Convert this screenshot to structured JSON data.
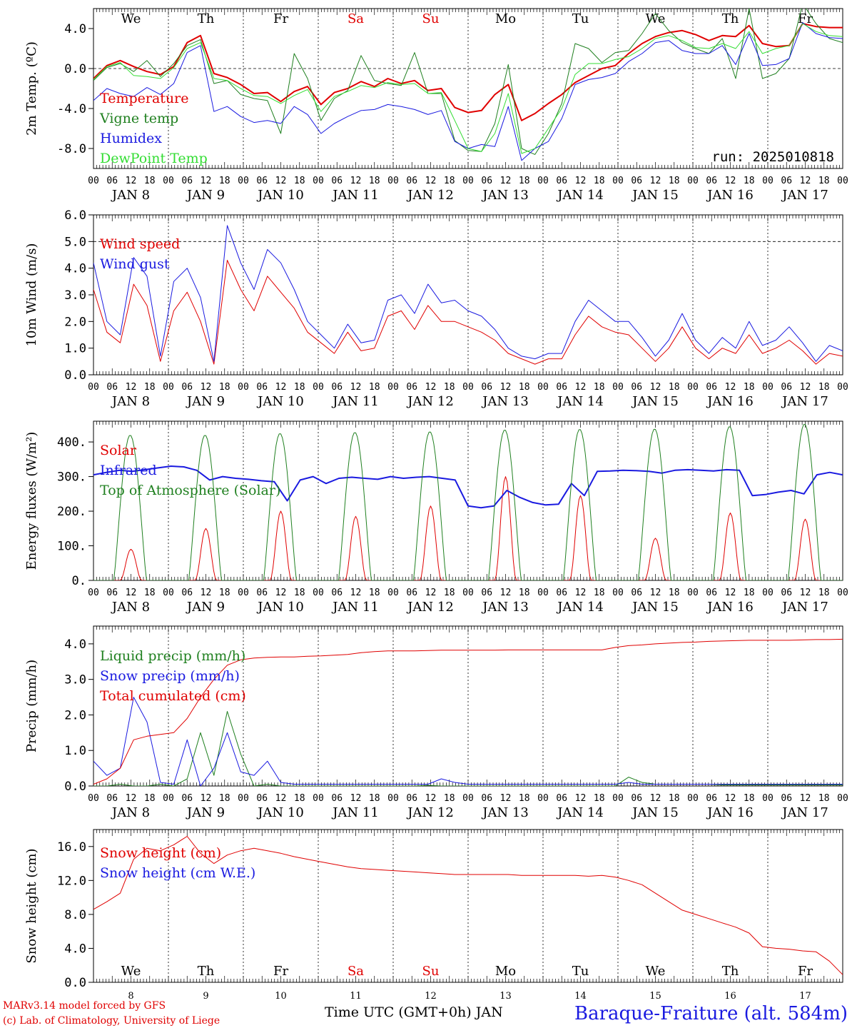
{
  "x_axis": {
    "days": [
      "JAN 8",
      "JAN 9",
      "JAN 10",
      "JAN 11",
      "JAN 12",
      "JAN 13",
      "JAN 14",
      "JAN 15",
      "JAN 16",
      "JAN 17"
    ],
    "hours": [
      "00",
      "06",
      "12",
      "18"
    ],
    "final_hour": "00",
    "weekdays": [
      {
        "label": "We",
        "color": "#000000"
      },
      {
        "label": "Th",
        "color": "#000000"
      },
      {
        "label": "Fr",
        "color": "#000000"
      },
      {
        "label": "Sa",
        "color": "#e00000"
      },
      {
        "label": "Su",
        "color": "#e00000"
      },
      {
        "label": "Mo",
        "color": "#000000"
      },
      {
        "label": "Tu",
        "color": "#000000"
      },
      {
        "label": "We",
        "color": "#000000"
      },
      {
        "label": "Th",
        "color": "#000000"
      },
      {
        "label": "Fr",
        "color": "#000000"
      }
    ],
    "bottom_day_numbers": [
      "8",
      "9",
      "10",
      "11",
      "12",
      "13",
      "14",
      "15",
      "16",
      "17"
    ],
    "bottom_label": "Time UTC (GMT+0h) JAN"
  },
  "footer": {
    "model_line": "MARv3.14 model forced by GFS",
    "credit_line": "(c) Lab. of Climatology, University of Liege",
    "station": "Baraque-Fraiture (alt. 584m)"
  },
  "chart_data": [
    {
      "type": "line",
      "ylabel": "2m Temp. (ºC)",
      "ylim": [
        -10,
        6
      ],
      "yticks": [
        "4.0",
        "0.0",
        "-4.0",
        "-8.0"
      ],
      "ytick_values": [
        4,
        0,
        -4,
        -8
      ],
      "ref_lines": [
        0
      ],
      "run_label": "run: 2025010818",
      "x_unit": "hours since JAN 8 00 UTC (3-hourly)",
      "series": [
        {
          "name": "Temperature",
          "color": "#e00000",
          "width": 2,
          "values": [
            -1.0,
            0.3,
            0.8,
            0.2,
            -0.3,
            -0.6,
            0.2,
            2.6,
            3.3,
            -0.5,
            -0.9,
            -1.6,
            -2.5,
            -2.4,
            -3.3,
            -2.3,
            -1.8,
            -3.6,
            -2.4,
            -2.0,
            -1.3,
            -1.8,
            -1.0,
            -1.5,
            -1.2,
            -2.2,
            -2.0,
            -3.9,
            -4.4,
            -4.2,
            -2.6,
            -1.6,
            -5.2,
            -4.5,
            -3.5,
            -2.6,
            -1.4,
            -0.7,
            0.0,
            0.3,
            1.5,
            2.5,
            3.2,
            3.6,
            3.8,
            3.4,
            2.8,
            3.3,
            3.2,
            4.3,
            2.5,
            2.2,
            2.3,
            4.5,
            4.2,
            4.1,
            4.1
          ]
        },
        {
          "name": "Vigne temp",
          "color": "#208020",
          "width": 1,
          "values": [
            -1.2,
            0.1,
            0.5,
            -0.3,
            0.8,
            -0.8,
            0.5,
            2.3,
            2.9,
            -1.5,
            -1.2,
            -2.6,
            -3.0,
            -3.2,
            -6.5,
            1.5,
            -1.0,
            -5.2,
            -3.0,
            -2.2,
            1.3,
            -1.2,
            -1.5,
            -1.7,
            1.6,
            -2.5,
            -2.5,
            -7.2,
            -8.2,
            -8.3,
            -5.5,
            0.4,
            -8.0,
            -8.6,
            -6.5,
            -3.5,
            2.5,
            2.0,
            0.6,
            1.6,
            1.8,
            3.5,
            5.5,
            3.8,
            2.6,
            2.0,
            1.5,
            3.0,
            -1.0,
            6.0,
            -1.0,
            -0.5,
            1.0,
            6.5,
            4.5,
            3.0,
            2.6
          ]
        },
        {
          "name": "Humidex",
          "color": "#1a1ae0",
          "width": 1,
          "values": [
            -3.2,
            -2.0,
            -2.5,
            -2.8,
            -1.9,
            -2.6,
            -1.5,
            1.6,
            2.3,
            -4.3,
            -3.8,
            -4.8,
            -5.4,
            -5.2,
            -5.5,
            -3.8,
            -4.6,
            -6.5,
            -5.5,
            -4.8,
            -4.2,
            -4.1,
            -3.6,
            -3.8,
            -4.1,
            -4.6,
            -4.2,
            -7.3,
            -8.0,
            -7.6,
            -7.8,
            -3.8,
            -9.2,
            -8.0,
            -7.3,
            -5.0,
            -1.6,
            -1.1,
            -0.9,
            -0.5,
            0.7,
            1.5,
            2.6,
            2.8,
            1.8,
            1.5,
            1.5,
            2.3,
            0.4,
            3.5,
            0.3,
            0.4,
            1.0,
            4.6,
            3.5,
            3.1,
            3.0
          ]
        },
        {
          "name": "DewPoint Temp",
          "color": "#33dd33",
          "width": 1,
          "values": [
            -1.1,
            0.2,
            0.6,
            -0.7,
            -0.8,
            -1.0,
            0.1,
            2.0,
            2.6,
            -1.0,
            -1.2,
            -2.0,
            -2.7,
            -2.8,
            -3.5,
            -2.7,
            -2.1,
            -4.3,
            -2.8,
            -2.3,
            -1.7,
            -1.9,
            -1.4,
            -1.6,
            -1.5,
            -2.5,
            -2.4,
            -5.2,
            -8.0,
            -8.3,
            -6.5,
            -2.5,
            -8.5,
            -8.0,
            -6.0,
            -4.0,
            -0.6,
            0.5,
            0.5,
            0.9,
            1.2,
            2.0,
            3.0,
            3.3,
            2.8,
            2.1,
            2.0,
            2.5,
            2.0,
            3.7,
            1.5,
            2.0,
            2.3,
            4.5,
            3.7,
            3.3,
            3.2
          ]
        }
      ]
    },
    {
      "type": "line",
      "ylabel": "10m Wind (m/s)",
      "ylim": [
        0,
        6
      ],
      "yticks": [
        "6.0",
        "5.0",
        "4.0",
        "3.0",
        "2.0",
        "1.0",
        "0.0"
      ],
      "ytick_values": [
        6,
        5,
        4,
        3,
        2,
        1,
        0
      ],
      "ref_lines": [
        5
      ],
      "series": [
        {
          "name": "Wind speed",
          "color": "#e00000",
          "width": 1,
          "values": [
            3.2,
            1.6,
            1.2,
            3.4,
            2.6,
            0.5,
            2.4,
            3.1,
            2.0,
            0.4,
            4.3,
            3.2,
            2.4,
            3.7,
            3.1,
            2.5,
            1.6,
            1.2,
            0.8,
            1.6,
            0.9,
            1.0,
            2.2,
            2.4,
            1.7,
            2.6,
            2.0,
            2.0,
            1.8,
            1.6,
            1.3,
            0.8,
            0.6,
            0.4,
            0.6,
            0.6,
            1.5,
            2.2,
            1.8,
            1.6,
            1.5,
            1.0,
            0.5,
            1.0,
            1.8,
            1.0,
            0.6,
            1.0,
            0.8,
            1.5,
            0.8,
            1.0,
            1.3,
            0.9,
            0.4,
            0.8,
            0.7
          ]
        },
        {
          "name": "Wind gust",
          "color": "#1a1ae0",
          "width": 1,
          "values": [
            4.2,
            2.0,
            1.5,
            4.4,
            3.7,
            0.7,
            3.5,
            4.0,
            2.9,
            0.5,
            5.6,
            4.2,
            3.2,
            4.7,
            4.2,
            3.2,
            2.0,
            1.5,
            1.0,
            1.9,
            1.2,
            1.3,
            2.8,
            3.0,
            2.3,
            3.4,
            2.7,
            2.8,
            2.4,
            2.2,
            1.7,
            1.0,
            0.7,
            0.6,
            0.8,
            0.8,
            2.0,
            2.8,
            2.4,
            2.0,
            2.0,
            1.4,
            0.7,
            1.3,
            2.3,
            1.3,
            0.8,
            1.4,
            1.0,
            2.0,
            1.1,
            1.3,
            1.8,
            1.2,
            0.5,
            1.1,
            0.9
          ]
        }
      ]
    },
    {
      "type": "line",
      "ylabel": "Energy fluxes (W/m²)",
      "ylim": [
        0,
        460
      ],
      "yticks": [
        "400.",
        "300.",
        "200.",
        "100.",
        "0."
      ],
      "ytick_values": [
        400,
        300,
        200,
        100,
        0
      ],
      "ref_lines": [],
      "series": [
        {
          "name": "Solar",
          "color": "#e00000",
          "width": 1,
          "peaks": [
            90,
            150,
            200,
            185,
            215,
            300,
            245,
            122,
            195,
            177
          ]
        },
        {
          "name": "Infrared",
          "color": "#1a1ae0",
          "width": 2,
          "values": [
            305,
            312,
            318,
            315,
            320,
            325,
            330,
            328,
            318,
            290,
            300,
            295,
            292,
            288,
            285,
            230,
            290,
            300,
            280,
            295,
            298,
            295,
            292,
            300,
            295,
            298,
            300,
            295,
            290,
            215,
            210,
            215,
            260,
            240,
            225,
            218,
            220,
            280,
            245,
            315,
            316,
            318,
            317,
            315,
            310,
            318,
            320,
            318,
            316,
            320,
            318,
            245,
            248,
            255,
            260,
            250,
            305,
            312,
            305
          ]
        },
        {
          "name": "Top of Atmosphere (Solar)",
          "color": "#208020",
          "width": 1,
          "peaks": [
            420,
            420,
            425,
            428,
            430,
            435,
            437,
            438,
            445,
            452
          ]
        }
      ]
    },
    {
      "type": "line",
      "ylabel": "Precip (mm/h)",
      "ylim": [
        0,
        4.5
      ],
      "yticks": [
        "4.0",
        "3.0",
        "2.0",
        "1.0",
        "0.0"
      ],
      "ytick_values": [
        4,
        3,
        2,
        1,
        0
      ],
      "ref_lines": [],
      "series": [
        {
          "name": "Liquid precip (mm/h)",
          "color": "#208020",
          "width": 1,
          "values": [
            0.0,
            0.0,
            0.05,
            0.0,
            0.0,
            0.05,
            0.0,
            0.2,
            1.5,
            0.3,
            2.1,
            0.9,
            0.0,
            0.05,
            0.0,
            0.0,
            0.0,
            0.0,
            0.0,
            0.0,
            0.0,
            0.0,
            0.0,
            0.0,
            0.0,
            0.02,
            0.0,
            0.0,
            0.0,
            0.0,
            0.0,
            0.0,
            0.0,
            0.0,
            0.0,
            0.0,
            0.0,
            0.0,
            0.0,
            0.0,
            0.25,
            0.1,
            0.05,
            0.05,
            0.05,
            0.05,
            0.05,
            0.03,
            0.03,
            0.03,
            0.03,
            0.03,
            0.03,
            0.03,
            0.03,
            0.03,
            0.03
          ]
        },
        {
          "name": "Snow precip (mm/h)",
          "color": "#1a1ae0",
          "width": 1,
          "values": [
            0.7,
            0.3,
            0.5,
            2.5,
            1.8,
            0.1,
            0.05,
            1.3,
            0.0,
            0.5,
            1.5,
            0.4,
            0.3,
            0.7,
            0.1,
            0.05,
            0.05,
            0.05,
            0.05,
            0.05,
            0.05,
            0.05,
            0.05,
            0.05,
            0.05,
            0.05,
            0.2,
            0.1,
            0.05,
            0.05,
            0.05,
            0.05,
            0.05,
            0.05,
            0.05,
            0.05,
            0.05,
            0.05,
            0.05,
            0.05,
            0.1,
            0.05,
            0.05,
            0.05,
            0.05,
            0.05,
            0.05,
            0.05,
            0.05,
            0.05,
            0.05,
            0.05,
            0.05,
            0.05,
            0.05,
            0.05,
            0.05
          ]
        },
        {
          "name": "Total cumulated (cm)",
          "color": "#e00000",
          "width": 1,
          "values": [
            0.05,
            0.2,
            0.5,
            1.3,
            1.4,
            1.45,
            1.5,
            1.9,
            2.5,
            3.0,
            3.4,
            3.55,
            3.6,
            3.62,
            3.63,
            3.63,
            3.65,
            3.66,
            3.68,
            3.7,
            3.75,
            3.78,
            3.8,
            3.8,
            3.8,
            3.81,
            3.82,
            3.82,
            3.82,
            3.82,
            3.82,
            3.83,
            3.83,
            3.83,
            3.83,
            3.83,
            3.83,
            3.83,
            3.83,
            3.9,
            3.95,
            3.97,
            4.0,
            4.02,
            4.04,
            4.05,
            4.07,
            4.08,
            4.09,
            4.1,
            4.1,
            4.1,
            4.1,
            4.11,
            4.12,
            4.12,
            4.13
          ]
        }
      ]
    },
    {
      "type": "line",
      "ylabel": "Snow height (cm)",
      "ylim": [
        0,
        18
      ],
      "yticks": [
        "16.0",
        "12.0",
        "8.0",
        "4.0",
        "0.0"
      ],
      "ytick_values": [
        16,
        12,
        8,
        4,
        0
      ],
      "ref_lines": [],
      "series": [
        {
          "name": "Snow height (cm)",
          "color": "#e00000",
          "width": 1,
          "values": [
            8.6,
            9.5,
            10.5,
            14.5,
            15.8,
            15.5,
            16.2,
            17.2,
            15.2,
            14.0,
            15.0,
            15.5,
            15.8,
            15.5,
            15.2,
            14.8,
            14.5,
            14.2,
            13.9,
            13.6,
            13.4,
            13.3,
            13.2,
            13.1,
            13.0,
            12.9,
            12.8,
            12.7,
            12.7,
            12.7,
            12.7,
            12.7,
            12.6,
            12.6,
            12.6,
            12.6,
            12.6,
            12.5,
            12.6,
            12.4,
            12.0,
            11.5,
            10.5,
            9.5,
            8.5,
            8.0,
            7.5,
            7.0,
            6.5,
            5.8,
            4.2,
            4.0,
            3.9,
            3.7,
            3.6,
            2.5,
            0.9
          ]
        },
        {
          "name": "Snow height (cm W.E.)",
          "color": "#1a1ae0",
          "width": 1,
          "values": []
        }
      ]
    }
  ]
}
